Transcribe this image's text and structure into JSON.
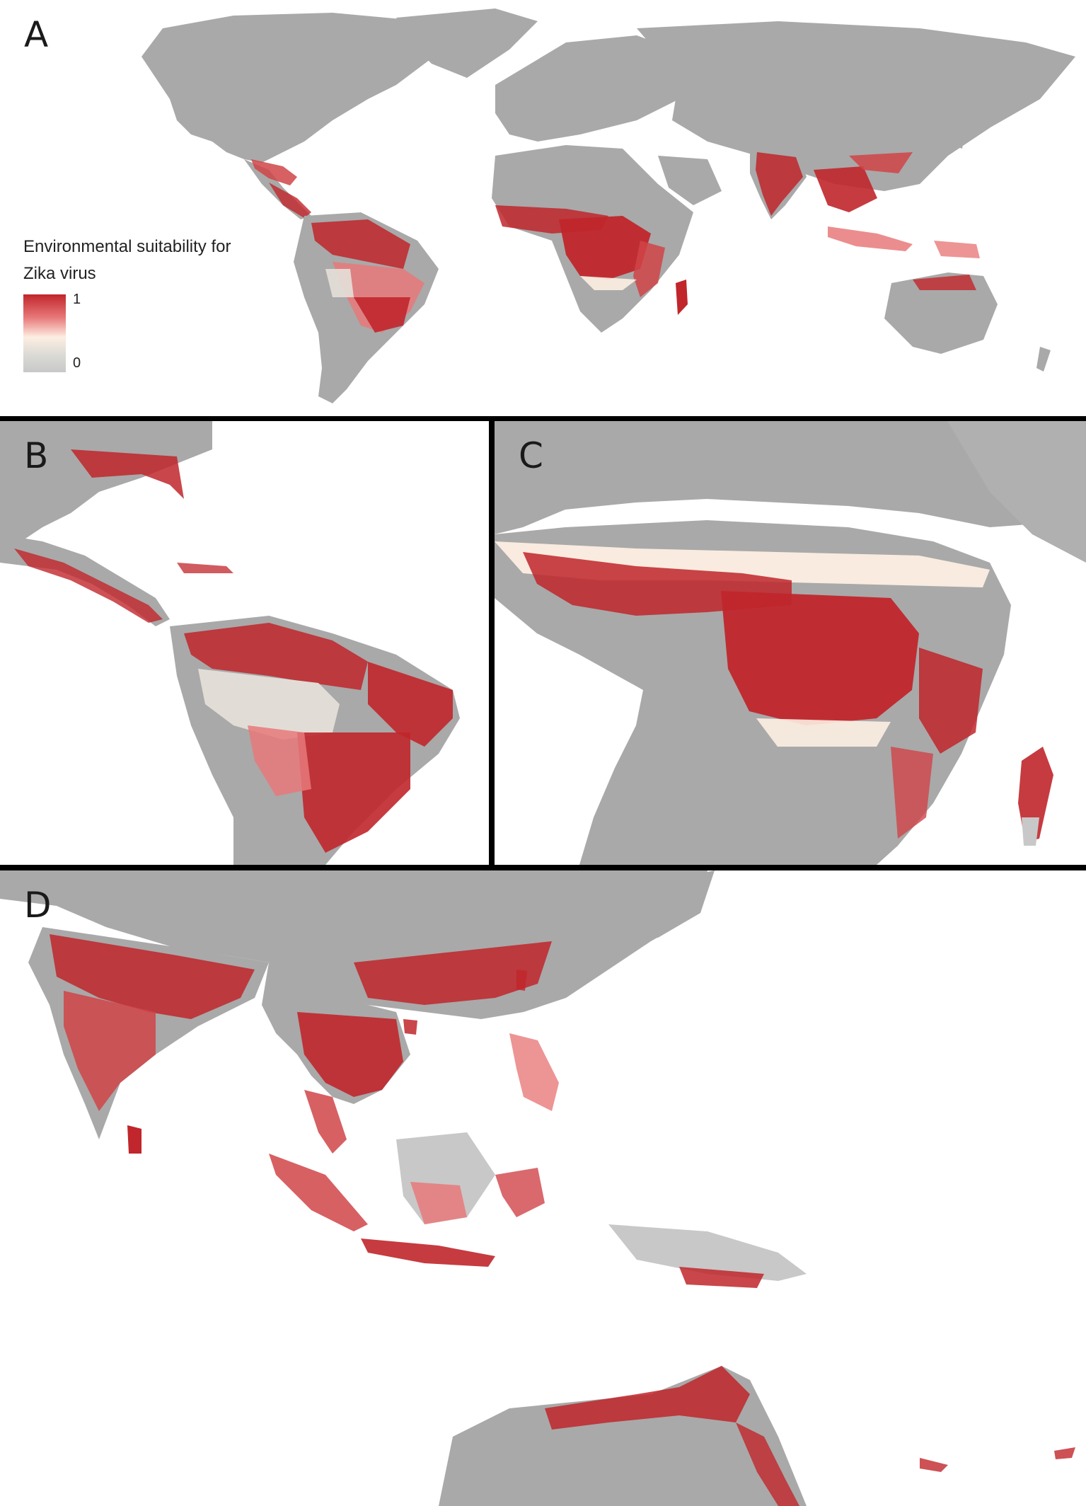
{
  "panels": {
    "a": {
      "label": "A"
    },
    "b": {
      "label": "B"
    },
    "c": {
      "label": "C"
    },
    "d": {
      "label": "D"
    }
  },
  "legend": {
    "title": "Environmental suitability for Zika virus",
    "max_label": "1",
    "min_label": "0"
  },
  "colors": {
    "land": "#a9a9a9",
    "high_suitability": "#c0262b",
    "mid_suitability": "#fdeee2",
    "low_suitability": "#d8d8d4",
    "background": "#ffffff",
    "divider": "#000000"
  }
}
